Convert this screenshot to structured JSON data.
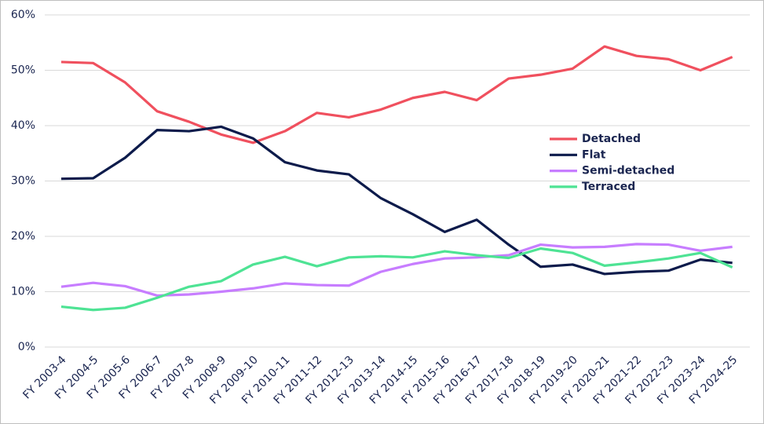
{
  "chart_data": {
    "type": "line",
    "categories": [
      "FY 2003-4",
      "FY 2004-5",
      "FY 2005-6",
      "FY 2006-7",
      "FY 2007-8",
      "FY 2008-9",
      "FY 2009-10",
      "FY 2010-11",
      "FY 2011-12",
      "FY 2012-13",
      "FY 2013-14",
      "FY 2014-15",
      "FY 2015-16",
      "FY 2016-17",
      "FY 2017-18",
      "FY 2018-19",
      "FY 2019-20",
      "FY 2020-21",
      "FY 2021-22",
      "FY 2022-23",
      "FY 2023-24",
      "FY 2024-25"
    ],
    "series": [
      {
        "name": "Detached",
        "color": "#f0505e",
        "values": [
          51.5,
          51.3,
          47.8,
          42.6,
          40.7,
          38.4,
          36.9,
          39.0,
          42.3,
          41.5,
          42.9,
          45.0,
          46.1,
          44.6,
          48.5,
          49.2,
          50.3,
          54.3,
          52.6,
          52.0,
          50.0,
          52.4
        ]
      },
      {
        "name": "Flat",
        "color": "#0d1b4b",
        "values": [
          30.4,
          30.5,
          34.2,
          39.2,
          39.0,
          39.8,
          37.7,
          33.4,
          31.9,
          31.2,
          26.9,
          24.0,
          20.8,
          23.0,
          18.5,
          14.5,
          14.9,
          13.2,
          13.6,
          13.8,
          15.8,
          15.2
        ]
      },
      {
        "name": "Semi-detached",
        "color": "#c77dff",
        "values": [
          10.9,
          11.6,
          11.0,
          9.3,
          9.5,
          10.0,
          10.6,
          11.5,
          11.2,
          11.1,
          13.6,
          15.0,
          16.0,
          16.2,
          16.6,
          18.5,
          18.0,
          18.1,
          18.6,
          18.5,
          17.4,
          18.1
        ]
      },
      {
        "name": "Terraced",
        "color": "#4ee394",
        "values": [
          7.3,
          6.7,
          7.1,
          8.9,
          10.9,
          11.9,
          14.9,
          16.3,
          14.6,
          16.2,
          16.4,
          16.2,
          17.3,
          16.6,
          16.1,
          17.8,
          17.0,
          14.7,
          15.3,
          16.0,
          17.0,
          14.4
        ]
      }
    ],
    "ylim": [
      0,
      60
    ],
    "yticks": [
      {
        "value": 0,
        "label": "0%"
      },
      {
        "value": 10,
        "label": "10%"
      },
      {
        "value": 20,
        "label": "20%"
      },
      {
        "value": 30,
        "label": "30%"
      },
      {
        "value": 40,
        "label": "40%"
      },
      {
        "value": 50,
        "label": "50%"
      },
      {
        "value": 60,
        "label": "60%"
      }
    ],
    "grid": true
  }
}
